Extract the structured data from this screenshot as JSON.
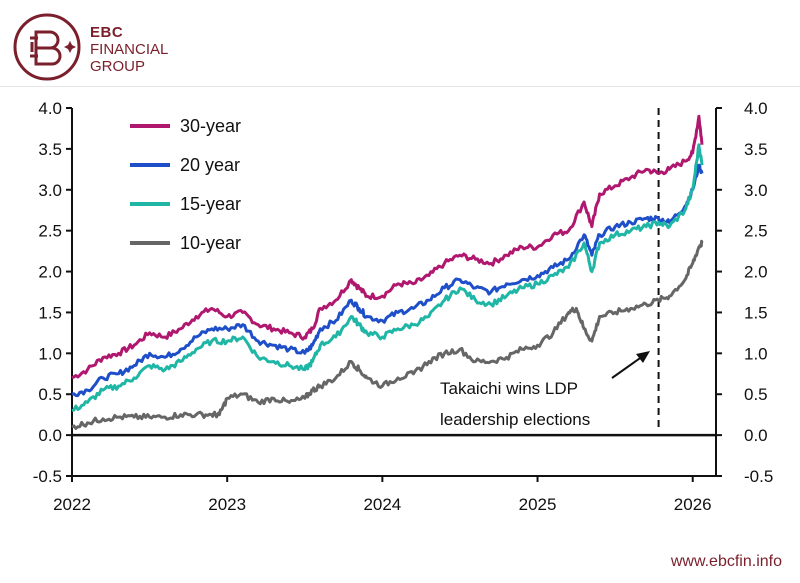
{
  "brand": {
    "line1": "EBC",
    "line2": "FINANCIAL",
    "line3": "GROUP",
    "website": "www.ebcfin.info",
    "color": "#7a1f2b"
  },
  "chart_data": {
    "type": "line",
    "title": "",
    "xlabel": "",
    "ylabel": "",
    "xlim": [
      2022.0,
      2026.15
    ],
    "ylim": [
      -0.5,
      4.0
    ],
    "x_ticks": [
      "2022",
      "2023",
      "2024",
      "2025",
      "2026"
    ],
    "y_ticks_left": [
      "4.0",
      "3.5",
      "3.0",
      "2.5",
      "2.0",
      "1.5",
      "1.0",
      "0.5",
      "0.0",
      "-0.5"
    ],
    "y_ticks_right": [
      "4.0",
      "3.5",
      "3.0",
      "2.5",
      "2.0",
      "1.5",
      "1.0",
      "0.5",
      "0.0",
      "-0.5"
    ],
    "grid": false,
    "legend_placement": "top-left",
    "event_line_x": 2025.78,
    "annotation": {
      "line1": "Takaichi wins LDP",
      "line2": "leadership elections"
    },
    "series": [
      {
        "name": "30-year",
        "color": "#b0176f",
        "points": [
          [
            2022.0,
            0.7
          ],
          [
            2022.1,
            0.8
          ],
          [
            2022.2,
            0.95
          ],
          [
            2022.3,
            1.0
          ],
          [
            2022.4,
            1.1
          ],
          [
            2022.5,
            1.25
          ],
          [
            2022.6,
            1.2
          ],
          [
            2022.7,
            1.3
          ],
          [
            2022.8,
            1.45
          ],
          [
            2022.9,
            1.55
          ],
          [
            2023.0,
            1.45
          ],
          [
            2023.1,
            1.5
          ],
          [
            2023.2,
            1.35
          ],
          [
            2023.3,
            1.3
          ],
          [
            2023.4,
            1.25
          ],
          [
            2023.5,
            1.2
          ],
          [
            2023.55,
            1.3
          ],
          [
            2023.6,
            1.55
          ],
          [
            2023.7,
            1.65
          ],
          [
            2023.8,
            1.9
          ],
          [
            2023.85,
            1.8
          ],
          [
            2023.9,
            1.7
          ],
          [
            2024.0,
            1.7
          ],
          [
            2024.1,
            1.85
          ],
          [
            2024.2,
            1.85
          ],
          [
            2024.3,
            1.95
          ],
          [
            2024.4,
            2.1
          ],
          [
            2024.5,
            2.2
          ],
          [
            2024.6,
            2.15
          ],
          [
            2024.7,
            2.1
          ],
          [
            2024.8,
            2.2
          ],
          [
            2024.9,
            2.3
          ],
          [
            2025.0,
            2.3
          ],
          [
            2025.1,
            2.45
          ],
          [
            2025.2,
            2.5
          ],
          [
            2025.3,
            2.85
          ],
          [
            2025.35,
            2.55
          ],
          [
            2025.4,
            2.95
          ],
          [
            2025.5,
            3.05
          ],
          [
            2025.6,
            3.15
          ],
          [
            2025.7,
            3.25
          ],
          [
            2025.78,
            3.2
          ],
          [
            2025.85,
            3.25
          ],
          [
            2025.95,
            3.35
          ],
          [
            2026.0,
            3.45
          ],
          [
            2026.04,
            3.9
          ],
          [
            2026.06,
            3.55
          ]
        ]
      },
      {
        "name": "20 year",
        "color": "#1f4fc8",
        "points": [
          [
            2022.0,
            0.5
          ],
          [
            2022.1,
            0.55
          ],
          [
            2022.2,
            0.7
          ],
          [
            2022.3,
            0.75
          ],
          [
            2022.4,
            0.85
          ],
          [
            2022.5,
            1.0
          ],
          [
            2022.6,
            0.95
          ],
          [
            2022.7,
            1.05
          ],
          [
            2022.8,
            1.2
          ],
          [
            2022.9,
            1.3
          ],
          [
            2023.0,
            1.3
          ],
          [
            2023.1,
            1.35
          ],
          [
            2023.2,
            1.15
          ],
          [
            2023.3,
            1.1
          ],
          [
            2023.4,
            1.05
          ],
          [
            2023.5,
            1.0
          ],
          [
            2023.55,
            1.1
          ],
          [
            2023.6,
            1.3
          ],
          [
            2023.7,
            1.4
          ],
          [
            2023.8,
            1.65
          ],
          [
            2023.85,
            1.55
          ],
          [
            2023.9,
            1.45
          ],
          [
            2024.0,
            1.4
          ],
          [
            2024.1,
            1.5
          ],
          [
            2024.2,
            1.55
          ],
          [
            2024.3,
            1.65
          ],
          [
            2024.4,
            1.8
          ],
          [
            2024.5,
            1.9
          ],
          [
            2024.6,
            1.8
          ],
          [
            2024.7,
            1.75
          ],
          [
            2024.8,
            1.85
          ],
          [
            2024.9,
            1.9
          ],
          [
            2025.0,
            1.95
          ],
          [
            2025.1,
            2.05
          ],
          [
            2025.2,
            2.15
          ],
          [
            2025.3,
            2.45
          ],
          [
            2025.35,
            2.2
          ],
          [
            2025.4,
            2.45
          ],
          [
            2025.5,
            2.55
          ],
          [
            2025.6,
            2.6
          ],
          [
            2025.7,
            2.65
          ],
          [
            2025.78,
            2.65
          ],
          [
            2025.85,
            2.6
          ],
          [
            2025.95,
            2.8
          ],
          [
            2026.0,
            3.0
          ],
          [
            2026.04,
            3.3
          ],
          [
            2026.06,
            3.2
          ]
        ]
      },
      {
        "name": "15-year",
        "color": "#1fb6a6",
        "points": [
          [
            2022.0,
            0.3
          ],
          [
            2022.1,
            0.4
          ],
          [
            2022.2,
            0.55
          ],
          [
            2022.3,
            0.6
          ],
          [
            2022.4,
            0.7
          ],
          [
            2022.5,
            0.85
          ],
          [
            2022.6,
            0.8
          ],
          [
            2022.7,
            0.9
          ],
          [
            2022.8,
            1.05
          ],
          [
            2022.9,
            1.15
          ],
          [
            2023.0,
            1.15
          ],
          [
            2023.1,
            1.2
          ],
          [
            2023.2,
            0.95
          ],
          [
            2023.3,
            0.9
          ],
          [
            2023.4,
            0.85
          ],
          [
            2023.5,
            0.8
          ],
          [
            2023.55,
            0.9
          ],
          [
            2023.6,
            1.1
          ],
          [
            2023.7,
            1.2
          ],
          [
            2023.8,
            1.45
          ],
          [
            2023.85,
            1.35
          ],
          [
            2023.9,
            1.25
          ],
          [
            2024.0,
            1.2
          ],
          [
            2024.1,
            1.3
          ],
          [
            2024.2,
            1.35
          ],
          [
            2024.3,
            1.45
          ],
          [
            2024.4,
            1.65
          ],
          [
            2024.5,
            1.8
          ],
          [
            2024.6,
            1.65
          ],
          [
            2024.7,
            1.6
          ],
          [
            2024.8,
            1.7
          ],
          [
            2024.9,
            1.8
          ],
          [
            2025.0,
            1.85
          ],
          [
            2025.1,
            1.95
          ],
          [
            2025.2,
            2.05
          ],
          [
            2025.3,
            2.35
          ],
          [
            2025.35,
            2.0
          ],
          [
            2025.4,
            2.35
          ],
          [
            2025.5,
            2.45
          ],
          [
            2025.6,
            2.5
          ],
          [
            2025.7,
            2.55
          ],
          [
            2025.78,
            2.6
          ],
          [
            2025.85,
            2.55
          ],
          [
            2025.95,
            2.75
          ],
          [
            2026.0,
            3.0
          ],
          [
            2026.04,
            3.55
          ],
          [
            2026.06,
            3.3
          ]
        ]
      },
      {
        "name": "10-year",
        "color": "#666666",
        "points": [
          [
            2022.0,
            0.1
          ],
          [
            2022.1,
            0.15
          ],
          [
            2022.2,
            0.2
          ],
          [
            2022.3,
            0.22
          ],
          [
            2022.4,
            0.22
          ],
          [
            2022.5,
            0.22
          ],
          [
            2022.6,
            0.22
          ],
          [
            2022.7,
            0.25
          ],
          [
            2022.8,
            0.25
          ],
          [
            2022.9,
            0.25
          ],
          [
            2022.95,
            0.25
          ],
          [
            2023.0,
            0.45
          ],
          [
            2023.1,
            0.5
          ],
          [
            2023.2,
            0.4
          ],
          [
            2023.3,
            0.45
          ],
          [
            2023.4,
            0.4
          ],
          [
            2023.5,
            0.45
          ],
          [
            2023.55,
            0.55
          ],
          [
            2023.6,
            0.6
          ],
          [
            2023.7,
            0.7
          ],
          [
            2023.8,
            0.9
          ],
          [
            2023.85,
            0.8
          ],
          [
            2023.9,
            0.7
          ],
          [
            2024.0,
            0.6
          ],
          [
            2024.1,
            0.7
          ],
          [
            2024.2,
            0.75
          ],
          [
            2024.3,
            0.9
          ],
          [
            2024.4,
            1.0
          ],
          [
            2024.5,
            1.05
          ],
          [
            2024.6,
            0.9
          ],
          [
            2024.7,
            0.9
          ],
          [
            2024.8,
            0.95
          ],
          [
            2024.9,
            1.05
          ],
          [
            2025.0,
            1.1
          ],
          [
            2025.1,
            1.25
          ],
          [
            2025.2,
            1.5
          ],
          [
            2025.25,
            1.55
          ],
          [
            2025.3,
            1.3
          ],
          [
            2025.35,
            1.15
          ],
          [
            2025.4,
            1.45
          ],
          [
            2025.5,
            1.5
          ],
          [
            2025.6,
            1.55
          ],
          [
            2025.7,
            1.6
          ],
          [
            2025.78,
            1.65
          ],
          [
            2025.85,
            1.7
          ],
          [
            2025.95,
            1.9
          ],
          [
            2026.0,
            2.1
          ],
          [
            2026.04,
            2.3
          ],
          [
            2026.06,
            2.35
          ]
        ]
      }
    ]
  }
}
